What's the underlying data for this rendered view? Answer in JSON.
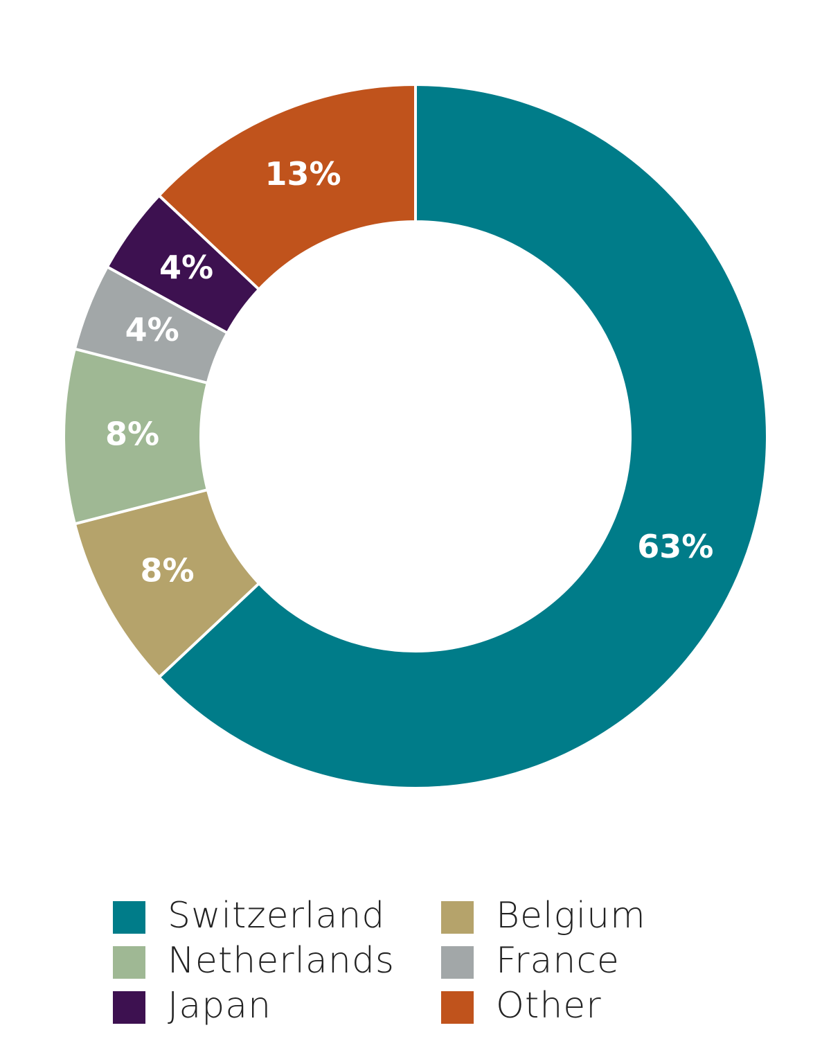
{
  "chart_data": {
    "type": "pie",
    "categories": [
      "Switzerland",
      "Belgium",
      "Netherlands",
      "France",
      "Japan",
      "Other"
    ],
    "values": [
      63,
      8,
      8,
      4,
      4,
      13
    ],
    "value_labels": [
      "63%",
      "8%",
      "8%",
      "4%",
      "4%",
      "13%"
    ],
    "colors": [
      "#007c89",
      "#b5a36b",
      "#9fb894",
      "#a2a7a8",
      "#3d1150",
      "#c0531c"
    ],
    "donut": true
  }
}
